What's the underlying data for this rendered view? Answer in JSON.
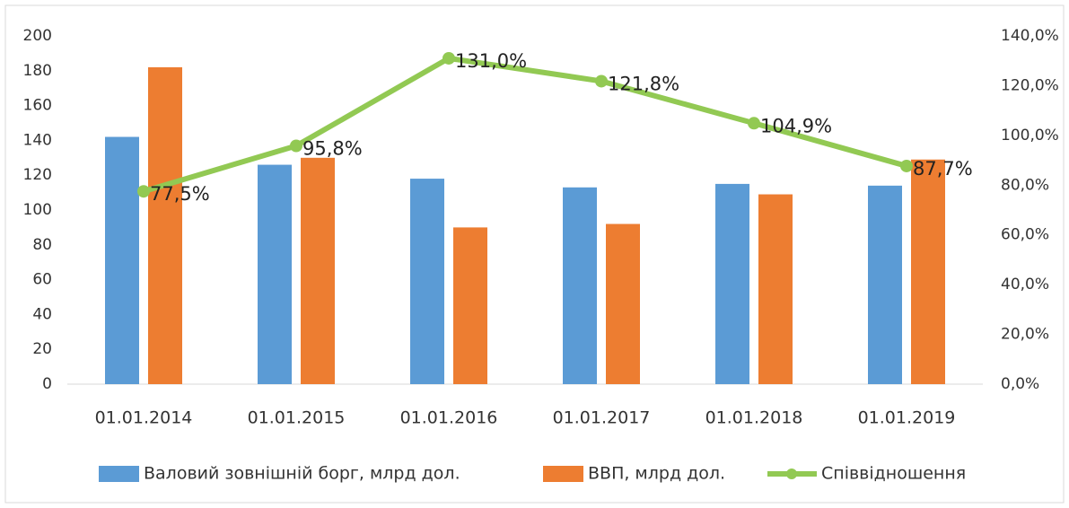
{
  "chart_data": {
    "type": "bar_line",
    "categories": [
      "01.01.2014",
      "01.01.2015",
      "01.01.2016",
      "01.01.2017",
      "01.01.2018",
      "01.01.2019"
    ],
    "series": [
      {
        "name": "Валовий зовнішній борг, млрд дол.",
        "color": "#5b9bd5",
        "type": "bar",
        "values": [
          142,
          126,
          118,
          113,
          115,
          114
        ]
      },
      {
        "name": "ВВП, млрд дол.",
        "color": "#ed7d31",
        "type": "bar",
        "values": [
          182,
          130,
          90,
          92,
          109,
          129
        ]
      },
      {
        "name": "Співвідношення",
        "color": "#92c953",
        "type": "line",
        "axis": "y2",
        "values": [
          77.5,
          95.8,
          131.0,
          121.8,
          104.9,
          87.7
        ],
        "value_labels": [
          "77,5%",
          "95,8%",
          "131,0%",
          "121,8%",
          "104,9%",
          "87,7%"
        ]
      }
    ],
    "ylim": [
      0,
      200
    ],
    "yticks": [
      0,
      20,
      40,
      60,
      80,
      100,
      120,
      140,
      160,
      180,
      200
    ],
    "y2lim": [
      0,
      140
    ],
    "y2ticks": [
      {
        "value": 0,
        "label": "0,0%"
      },
      {
        "value": 20,
        "label": "20,0%"
      },
      {
        "value": 40,
        "label": "40,0%"
      },
      {
        "value": 60,
        "label": "60,0%"
      },
      {
        "value": 80,
        "label": "80,0%"
      },
      {
        "value": 100,
        "label": "100,0%"
      },
      {
        "value": 120,
        "label": "120,0%"
      },
      {
        "value": 140,
        "label": "140,0%"
      }
    ],
    "grid": false,
    "legend": "bottom"
  }
}
